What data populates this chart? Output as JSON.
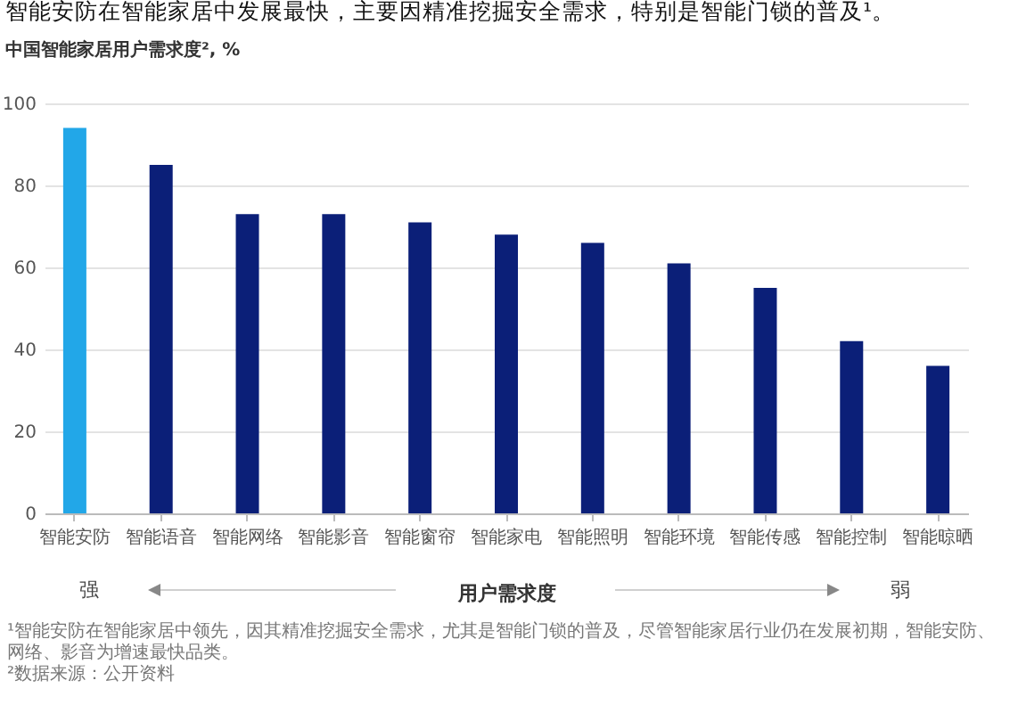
{
  "chart_data": {
    "type": "bar",
    "title": "智能安防在智能家居中发展最快，主要因精准挖掘安全需求，特别是智能门锁的普及¹。",
    "subtitle": "中国智能家居用户需求度², %",
    "xlabel": "用户需求度",
    "categories": [
      "智能安防",
      "智能语音",
      "智能网络",
      "智能影音",
      "智能窗帘",
      "智能家电",
      "智能照明",
      "智能环境",
      "智能传感",
      "智能控制",
      "智能晾晒"
    ],
    "values": [
      94,
      85,
      73,
      73,
      71,
      68,
      66,
      61,
      55,
      42,
      36
    ],
    "colors": [
      "#22a7e8",
      "#0b1f78",
      "#0b1f78",
      "#0b1f78",
      "#0b1f78",
      "#0b1f78",
      "#0b1f78",
      "#0b1f78",
      "#0b1f78",
      "#0b1f78",
      "#0b1f78"
    ],
    "ylim": [
      0,
      100
    ],
    "yticks": [
      0,
      20,
      40,
      60,
      80,
      100
    ],
    "grid": "y",
    "annotations": [
      "强",
      "弱",
      "¹智能安防在智能家居中领先，因其精准挖掘安全需求，尤其是智能门锁的普及，尽管智能家居行业仍在发展初期，智能安防、网络、影音为增速最快品类。",
      "²数据来源：公开资料"
    ]
  }
}
